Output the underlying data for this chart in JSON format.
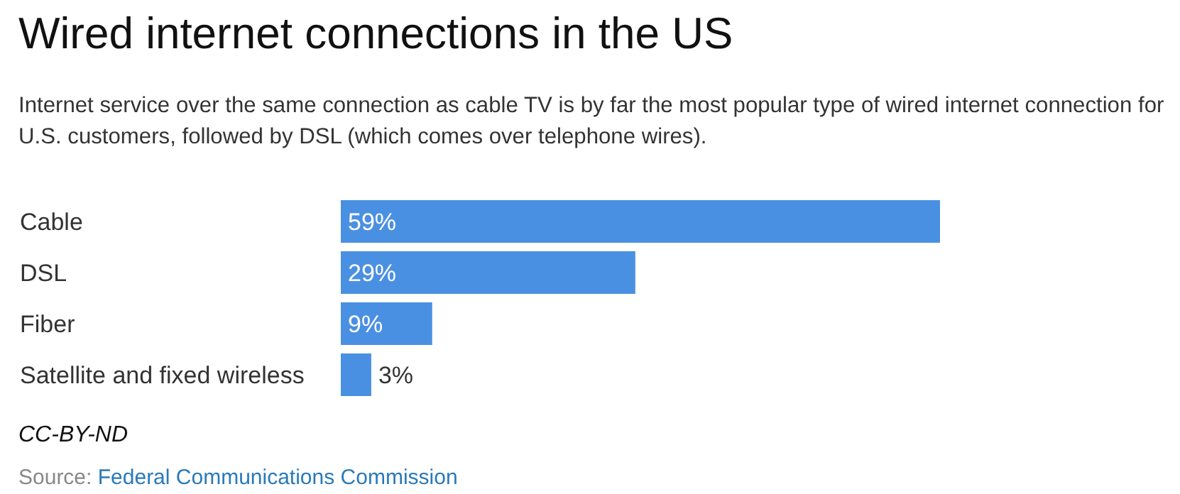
{
  "chart_data": {
    "type": "bar",
    "orientation": "horizontal",
    "title": "Wired internet connections in the US",
    "subtitle": "Internet service over the same connection as cable TV is by far the most popular type of wired internet connection for U.S. customers, followed by DSL (which comes over telephone wires).",
    "categories": [
      "Cable",
      "DSL",
      "Fiber",
      "Satellite and fixed wireless"
    ],
    "series": [
      {
        "color": "#4a90e2",
        "values": [
          59,
          29,
          9,
          3
        ],
        "value_labels": [
          "59%",
          "29%",
          "9%",
          "3%"
        ]
      }
    ],
    "annotations": [
      "CC-BY-ND",
      "Source: Federal Communications Commission"
    ]
  }
}
